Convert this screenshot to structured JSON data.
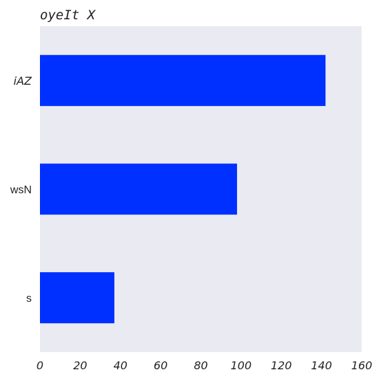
{
  "chart_data": {
    "type": "bar",
    "orientation": "horizontal",
    "title": "oyeIt X",
    "xlabel": "",
    "ylabel": "",
    "categories": [
      "iAZ",
      "wsN",
      "s"
    ],
    "values": [
      142,
      98,
      37
    ],
    "xlim": [
      0,
      160
    ],
    "x_ticks": [
      "0",
      "20",
      "40",
      "60",
      "80",
      "100",
      "120",
      "140",
      "160"
    ],
    "grid": false,
    "legend": "none",
    "colors": {
      "bar": "#0030ff",
      "plot_background": "#eaeaf2"
    }
  }
}
